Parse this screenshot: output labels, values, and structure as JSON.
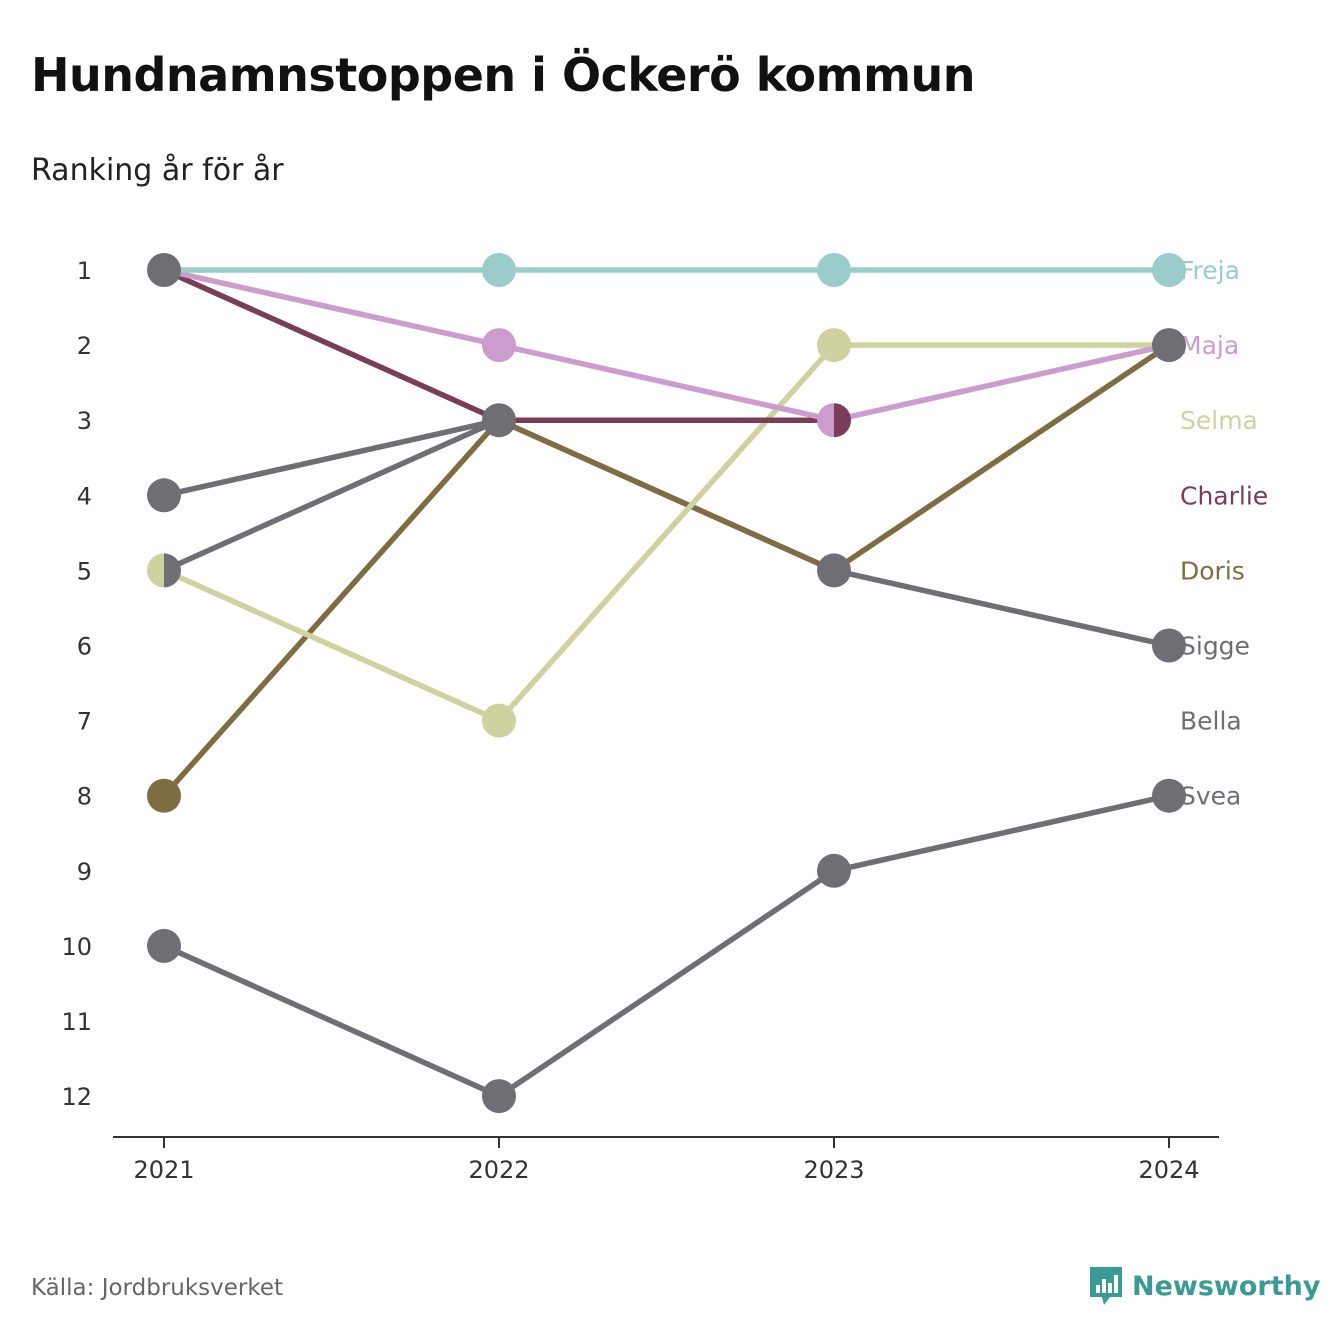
{
  "title": "Hundnamnstoppen i Öckerö kommun",
  "subtitle": "Ranking år för år",
  "source": "Källa: Jordbruksverket",
  "brand": {
    "name": "Newsworthy",
    "icon": "newsworthy-logo-icon",
    "color": "#3a9b94"
  },
  "chart_data": {
    "type": "line",
    "chart_subtype": "bump",
    "x": [
      "2021",
      "2022",
      "2023",
      "2024"
    ],
    "ylim": [
      1,
      12
    ],
    "y_inverted": true,
    "y_ticks": [
      1,
      2,
      3,
      4,
      5,
      6,
      7,
      8,
      9,
      10,
      11,
      12
    ],
    "grid": false,
    "legend": "right-end labels",
    "series": [
      {
        "name": "Sigge",
        "color": "#6f6e75",
        "values": [
          5,
          3,
          5,
          6
        ]
      },
      {
        "name": "Bella",
        "color": "#6f6e75",
        "values": [
          4,
          3,
          null,
          null
        ]
      },
      {
        "name": "Svea",
        "color": "#6f6e75",
        "values": [
          10,
          12,
          9,
          8
        ]
      },
      {
        "name": "Doris",
        "color": "#7f6d42",
        "values": [
          8,
          3,
          5,
          2
        ]
      },
      {
        "name": "Selma",
        "color": "#cfd19e",
        "values": [
          5,
          7,
          2,
          2
        ]
      },
      {
        "name": "Charlie",
        "color": "#7a3d58",
        "values": [
          1,
          3,
          3,
          null
        ]
      },
      {
        "name": "Maja",
        "color": "#cc9ccf",
        "values": [
          1,
          2,
          3,
          2
        ]
      },
      {
        "name": "Freja",
        "color": "#99cccb",
        "values": [
          1,
          1,
          1,
          1
        ]
      }
    ],
    "end_labels": [
      {
        "name": "Freja",
        "rank": 1,
        "color": "#99cccb"
      },
      {
        "name": "Maja",
        "rank": 2,
        "color": "#cc9ccf"
      },
      {
        "name": "Selma",
        "rank": 3,
        "color": "#cfd19e"
      },
      {
        "name": "Charlie",
        "rank": 4,
        "color": "#7a3d58"
      },
      {
        "name": "Doris",
        "rank": 5,
        "color": "#7f6d42"
      },
      {
        "name": "Sigge",
        "rank": 6,
        "color": "#6f6e75"
      },
      {
        "name": "Bella",
        "rank": 7,
        "color": "#6f6e75"
      },
      {
        "name": "Svea",
        "rank": 8,
        "color": "#6f6e75"
      }
    ],
    "markers": [
      {
        "year": "2021",
        "rank": 1,
        "colors": [
          "#6f6e75"
        ]
      },
      {
        "year": "2021",
        "rank": 4,
        "colors": [
          "#6f6e75"
        ]
      },
      {
        "year": "2021",
        "rank": 5,
        "colors": [
          "#cfd19e",
          "#6f6e75"
        ]
      },
      {
        "year": "2021",
        "rank": 8,
        "colors": [
          "#7f6d42"
        ]
      },
      {
        "year": "2021",
        "rank": 10,
        "colors": [
          "#6f6e75"
        ]
      },
      {
        "year": "2022",
        "rank": 1,
        "colors": [
          "#99cccb"
        ]
      },
      {
        "year": "2022",
        "rank": 2,
        "colors": [
          "#cc9ccf"
        ]
      },
      {
        "year": "2022",
        "rank": 3,
        "colors": [
          "#6f6e75"
        ]
      },
      {
        "year": "2022",
        "rank": 7,
        "colors": [
          "#cfd19e"
        ]
      },
      {
        "year": "2022",
        "rank": 12,
        "colors": [
          "#6f6e75"
        ]
      },
      {
        "year": "2023",
        "rank": 1,
        "colors": [
          "#99cccb"
        ]
      },
      {
        "year": "2023",
        "rank": 2,
        "colors": [
          "#cfd19e"
        ]
      },
      {
        "year": "2023",
        "rank": 3,
        "colors": [
          "#cc9ccf",
          "#7a3d58"
        ]
      },
      {
        "year": "2023",
        "rank": 5,
        "colors": [
          "#6f6e75"
        ]
      },
      {
        "year": "2023",
        "rank": 9,
        "colors": [
          "#6f6e75"
        ]
      },
      {
        "year": "2024",
        "rank": 1,
        "colors": [
          "#99cccb"
        ]
      },
      {
        "year": "2024",
        "rank": 2,
        "colors": [
          "#6f6e75"
        ]
      },
      {
        "year": "2024",
        "rank": 6,
        "colors": [
          "#6f6e75"
        ]
      },
      {
        "year": "2024",
        "rank": 8,
        "colors": [
          "#6f6e75"
        ]
      }
    ]
  }
}
